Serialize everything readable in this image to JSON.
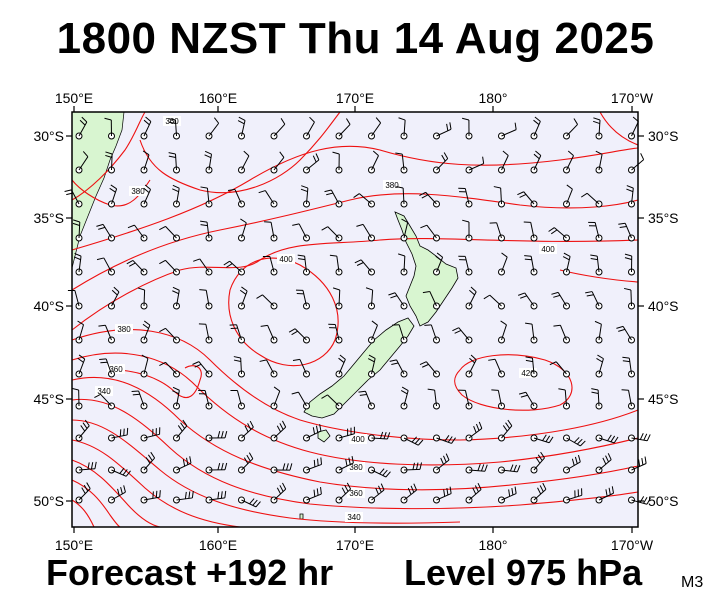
{
  "header": {
    "title": "1800 NZST Thu 14 Aug 2025"
  },
  "footer": {
    "forecast": "Forecast +192 hr",
    "level": "Level 975 hPa",
    "tag": "M3"
  },
  "map": {
    "longitude_labels": [
      "150°E",
      "160°E",
      "170°E",
      "180°",
      "170°W"
    ],
    "latitude_labels": [
      "30°S",
      "35°S",
      "40°S",
      "45°S",
      "50°S"
    ],
    "contour_labels": [
      "360",
      "380",
      "380",
      "400",
      "400",
      "420",
      "400",
      "380",
      "360",
      "340",
      "380",
      "360",
      "340"
    ],
    "colors": {
      "ocean": "#f0f0fb",
      "land": "#d8f5d0",
      "contour": "#ee1111",
      "barb": "#000000"
    }
  }
}
